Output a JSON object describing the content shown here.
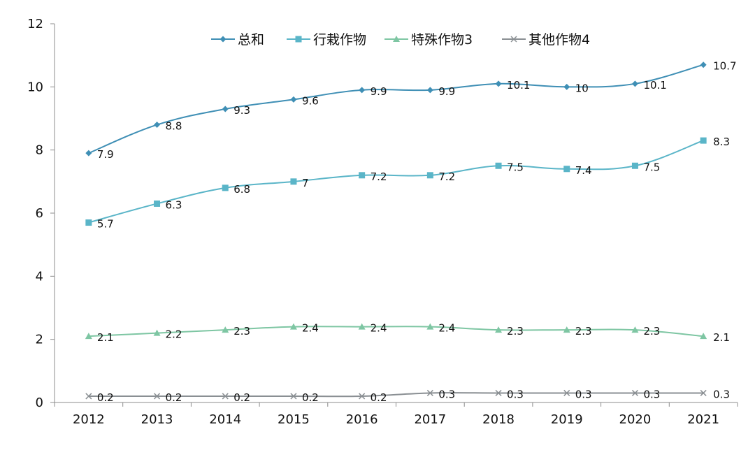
{
  "chart_data": {
    "type": "line",
    "title": "",
    "xlabel": "",
    "ylabel": "",
    "categories": [
      "2012",
      "2013",
      "2014",
      "2015",
      "2016",
      "2017",
      "2018",
      "2019",
      "2020",
      "2021"
    ],
    "ylim": [
      0,
      12
    ],
    "yticks": [
      "0",
      "2",
      "4",
      "6",
      "8",
      "10",
      "12"
    ],
    "grid": false,
    "legend_position": "top",
    "series": [
      {
        "name": "总和",
        "values": [
          7.9,
          8.8,
          9.3,
          9.6,
          9.9,
          9.9,
          10.1,
          10,
          10.1,
          10.7
        ],
        "labels": [
          "7.9",
          "8.8",
          "9.3",
          "9.6",
          "9.9",
          "9.9",
          "10.1",
          "10",
          "10.1",
          "10.7"
        ],
        "color": "#3f8fb5",
        "marker": "diamond"
      },
      {
        "name": "行栽作物",
        "values": [
          5.7,
          6.3,
          6.8,
          7,
          7.2,
          7.2,
          7.5,
          7.4,
          7.5,
          8.3
        ],
        "labels": [
          "5.7",
          "6.3",
          "6.8",
          "7",
          "7.2",
          "7.2",
          "7.5",
          "7.4",
          "7.5",
          "8.3"
        ],
        "color": "#5ab5c8",
        "marker": "square"
      },
      {
        "name": "特殊作物3",
        "values": [
          2.1,
          2.2,
          2.3,
          2.4,
          2.4,
          2.4,
          2.3,
          2.3,
          2.3,
          2.1
        ],
        "labels": [
          "2.1",
          "2.2",
          "2.3",
          "2.4",
          "2.4",
          "2.4",
          "2.3",
          "2.3",
          "2.3",
          "2.1"
        ],
        "color": "#7ec6a3",
        "marker": "triangle"
      },
      {
        "name": "其他作物4",
        "values": [
          0.2,
          0.2,
          0.2,
          0.2,
          0.2,
          0.3,
          0.3,
          0.3,
          0.3,
          0.3
        ],
        "labels": [
          "0.2",
          "0.2",
          "0.2",
          "0.2",
          "0.2",
          "0.3",
          "0.3",
          "0.3",
          "0.3",
          "0.3"
        ],
        "color": "#8a8f93",
        "marker": "x"
      }
    ]
  }
}
